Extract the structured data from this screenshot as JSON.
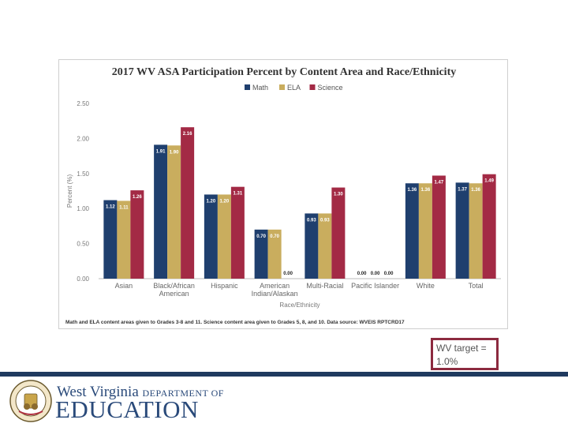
{
  "chart_data": {
    "type": "bar",
    "title": "2017 WV ASA Participation Percent by Content Area and Race/Ethnicity",
    "categories": [
      "Asian",
      "Black/African American",
      "Hispanic",
      "American Indian/Alaskan",
      "Multi-Racial",
      "Pacific Islander",
      "White",
      "Total"
    ],
    "category_lines": [
      [
        "Asian"
      ],
      [
        "Black/African",
        "American"
      ],
      [
        "Hispanic"
      ],
      [
        "American",
        "Indian/Alaskan"
      ],
      [
        "Multi-Racial"
      ],
      [
        "Pacific Islander"
      ],
      [
        "White"
      ],
      [
        "Total"
      ]
    ],
    "series": [
      {
        "name": "Math",
        "color": "#1f3f6e",
        "values": [
          1.12,
          1.91,
          1.2,
          0.7,
          0.93,
          0.0,
          1.36,
          1.37
        ]
      },
      {
        "name": "ELA",
        "color": "#c9ad5e",
        "values": [
          1.11,
          1.9,
          1.2,
          0.7,
          0.93,
          0.0,
          1.36,
          1.36
        ]
      },
      {
        "name": "Science",
        "color": "#a32a45",
        "values": [
          1.26,
          2.16,
          1.31,
          0.0,
          1.3,
          0.0,
          1.47,
          1.49
        ]
      }
    ],
    "data_labels": [
      [
        "1.12",
        "1.11",
        "1.26"
      ],
      [
        "1.91",
        "1.90",
        "2.16"
      ],
      [
        "1.20",
        "1.20",
        "1.31"
      ],
      [
        "0.70",
        "0.70",
        "0.00"
      ],
      [
        "0.93",
        "0.93",
        "1.30"
      ],
      [
        "0.00",
        "0.00",
        "0.00"
      ],
      [
        "1.36",
        "1.36",
        "1.47"
      ],
      [
        "1.37",
        "1.36",
        "1.49"
      ]
    ],
    "xlabel": "Race/Ethnicity",
    "ylabel": "Percent (%)",
    "ylim": [
      0,
      2.5
    ],
    "yticks": [
      "0.00",
      "0.50",
      "1.00",
      "1.50",
      "2.00",
      "2.50"
    ],
    "legend_position": "top-center",
    "grid": false,
    "footnote": "Math and ELA content areas given to Grades 3-8 and 11. Science content area given to Grades 5, 8, and 10. Data source: WVEIS RPTCRD17"
  },
  "annotation": {
    "target_line1": "WV target =",
    "target_line2": "1.0%"
  },
  "footer": {
    "line1_main": "West Virginia",
    "line1_dept": "DEPARTMENT OF",
    "line2": "EDUCATION",
    "seal_text": "STATE OF WEST VIRGINIA"
  },
  "colors": {
    "footer_band": "#1f3a5f",
    "target_border": "#8c2a3f"
  }
}
